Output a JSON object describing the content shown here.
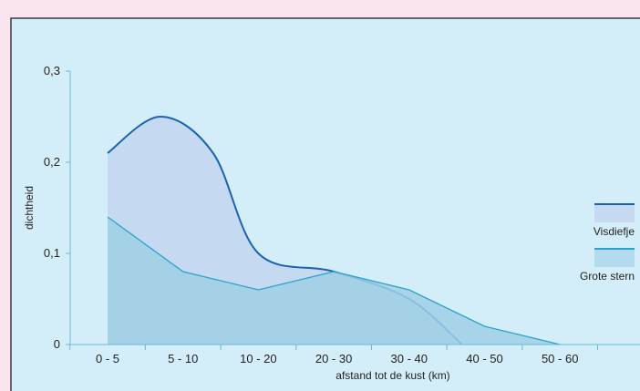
{
  "chart_data": {
    "type": "area",
    "title": "",
    "xlabel": "afstand tot de kust (km)",
    "ylabel": "dichtheid",
    "categories": [
      "0 - 5",
      "5 - 10",
      "10 - 20",
      "20 - 30",
      "30 - 40",
      "40 - 50",
      "50 - 60"
    ],
    "yticks": [
      "0",
      "0,1",
      "0,2",
      "0,3"
    ],
    "ylim": [
      0,
      0.3
    ],
    "grid": false,
    "legend_position": "right",
    "series": [
      {
        "name": "Visdiefje",
        "x": [
          0,
          0.7,
          1.4,
          2,
          3,
          4,
          4.7
        ],
        "values": [
          0.21,
          0.25,
          0.21,
          0.1,
          0.08,
          0.05,
          0.0
        ],
        "line_color": "#1a63b0",
        "fill_color": "#c5d9f0",
        "smooth": true
      },
      {
        "name": "Grote stern",
        "x": [
          0,
          1,
          2,
          3,
          4,
          5,
          6
        ],
        "values": [
          0.14,
          0.08,
          0.06,
          0.08,
          0.06,
          0.02,
          0.0
        ],
        "line_color": "#29a3cc",
        "fill_color": "#9fcfe5",
        "smooth": false
      }
    ],
    "colors": {
      "page_bg": "#f9e3ec",
      "plot_bg": "#d4eef9",
      "axis": "#6ab8d8",
      "frame": "#3a3a3a"
    }
  }
}
